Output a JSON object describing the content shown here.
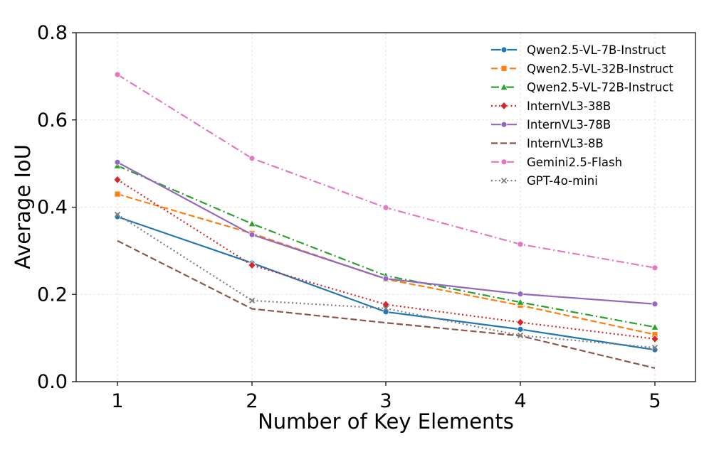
{
  "chart_data": {
    "type": "line",
    "title": "",
    "xlabel": "Number of Key Elements",
    "ylabel": "Average IoU",
    "x": [
      1,
      2,
      3,
      4,
      5
    ],
    "x_tick_labels": [
      "1",
      "2",
      "3",
      "4",
      "5"
    ],
    "ylim": [
      0.0,
      0.8
    ],
    "y_ticks": [
      0.0,
      0.2,
      0.4,
      0.6,
      0.8
    ],
    "y_tick_labels": [
      "0.0",
      "0.2",
      "0.4",
      "0.6",
      "0.8"
    ],
    "grid": true,
    "legend_position": "top-right",
    "series": [
      {
        "name": "Qwen2.5-VL-7B-Instruct",
        "values": [
          0.378,
          0.272,
          0.16,
          0.12,
          0.073
        ],
        "color": "#1f77b4",
        "line_style": "solid",
        "marker": "circle"
      },
      {
        "name": "Qwen2.5-VL-32B-Instruct",
        "values": [
          0.43,
          0.34,
          0.235,
          0.175,
          0.108
        ],
        "color": "#ff7f0e",
        "line_style": "dashed",
        "marker": "square"
      },
      {
        "name": "Qwen2.5-VL-72B-Instruct",
        "values": [
          0.495,
          0.362,
          0.243,
          0.182,
          0.125
        ],
        "color": "#2ca02c",
        "line_style": "dashdot",
        "marker": "triangle"
      },
      {
        "name": "InternVL3-38B",
        "values": [
          0.463,
          0.267,
          0.177,
          0.136,
          0.098
        ],
        "color": "#d62728",
        "line_style": "dotted",
        "marker": "diamond"
      },
      {
        "name": "InternVL3-78B",
        "values": [
          0.503,
          0.337,
          0.236,
          0.201,
          0.178
        ],
        "color": "#9467bd",
        "line_style": "solid",
        "marker": "circle"
      },
      {
        "name": "InternVL3-8B",
        "values": [
          0.323,
          0.167,
          0.135,
          0.105,
          0.031
        ],
        "color": "#8c564b",
        "line_style": "dashed",
        "marker": "none"
      },
      {
        "name": "Gemini2.5-Flash",
        "values": [
          0.704,
          0.512,
          0.399,
          0.315,
          0.261
        ],
        "color": "#e377c2",
        "line_style": "dashdot",
        "marker": "circle"
      },
      {
        "name": "GPT-4o-mini",
        "values": [
          0.383,
          0.186,
          0.168,
          0.106,
          0.078
        ],
        "color": "#7f7f7f",
        "line_style": "dotted",
        "marker": "x"
      }
    ]
  }
}
